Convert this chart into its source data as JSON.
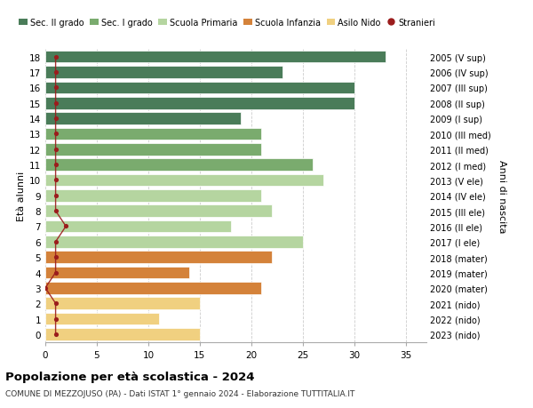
{
  "ages": [
    18,
    17,
    16,
    15,
    14,
    13,
    12,
    11,
    10,
    9,
    8,
    7,
    6,
    5,
    4,
    3,
    2,
    1,
    0
  ],
  "right_labels": [
    "2005 (V sup)",
    "2006 (IV sup)",
    "2007 (III sup)",
    "2008 (II sup)",
    "2009 (I sup)",
    "2010 (III med)",
    "2011 (II med)",
    "2012 (I med)",
    "2013 (V ele)",
    "2014 (IV ele)",
    "2015 (III ele)",
    "2016 (II ele)",
    "2017 (I ele)",
    "2018 (mater)",
    "2019 (mater)",
    "2020 (mater)",
    "2021 (nido)",
    "2022 (nido)",
    "2023 (nido)"
  ],
  "bar_values": [
    33,
    23,
    30,
    30,
    19,
    21,
    21,
    26,
    27,
    21,
    22,
    18,
    25,
    22,
    14,
    21,
    15,
    11,
    15
  ],
  "bar_colors": [
    "#4a7c59",
    "#4a7c59",
    "#4a7c59",
    "#4a7c59",
    "#4a7c59",
    "#7aab6e",
    "#7aab6e",
    "#7aab6e",
    "#b5d5a0",
    "#b5d5a0",
    "#b5d5a0",
    "#b5d5a0",
    "#b5d5a0",
    "#d4823a",
    "#d4823a",
    "#d4823a",
    "#f0d080",
    "#f0d080",
    "#f0d080"
  ],
  "stranieri_values": [
    1,
    1,
    1,
    1,
    1,
    1,
    1,
    1,
    1,
    1,
    1,
    2,
    1,
    1,
    1,
    0,
    1,
    1,
    1
  ],
  "legend_labels": [
    "Sec. II grado",
    "Sec. I grado",
    "Scuola Primaria",
    "Scuola Infanzia",
    "Asilo Nido",
    "Stranieri"
  ],
  "legend_colors": [
    "#4a7c59",
    "#7aab6e",
    "#b5d5a0",
    "#d4823a",
    "#f0d080",
    "#9b1c1c"
  ],
  "title": "Popolazione per età scolastica - 2024",
  "subtitle": "COMUNE DI MEZZOJUSO (PA) - Dati ISTAT 1° gennaio 2024 - Elaborazione TUTTITALIA.IT",
  "ylabel": "Età alunni",
  "right_ylabel": "Anni di nascita",
  "xlim": [
    0,
    37
  ],
  "xticks": [
    0,
    5,
    10,
    15,
    20,
    25,
    30,
    35
  ],
  "bg_color": "#ffffff",
  "bar_height": 0.78,
  "grid_color": "#cccccc"
}
